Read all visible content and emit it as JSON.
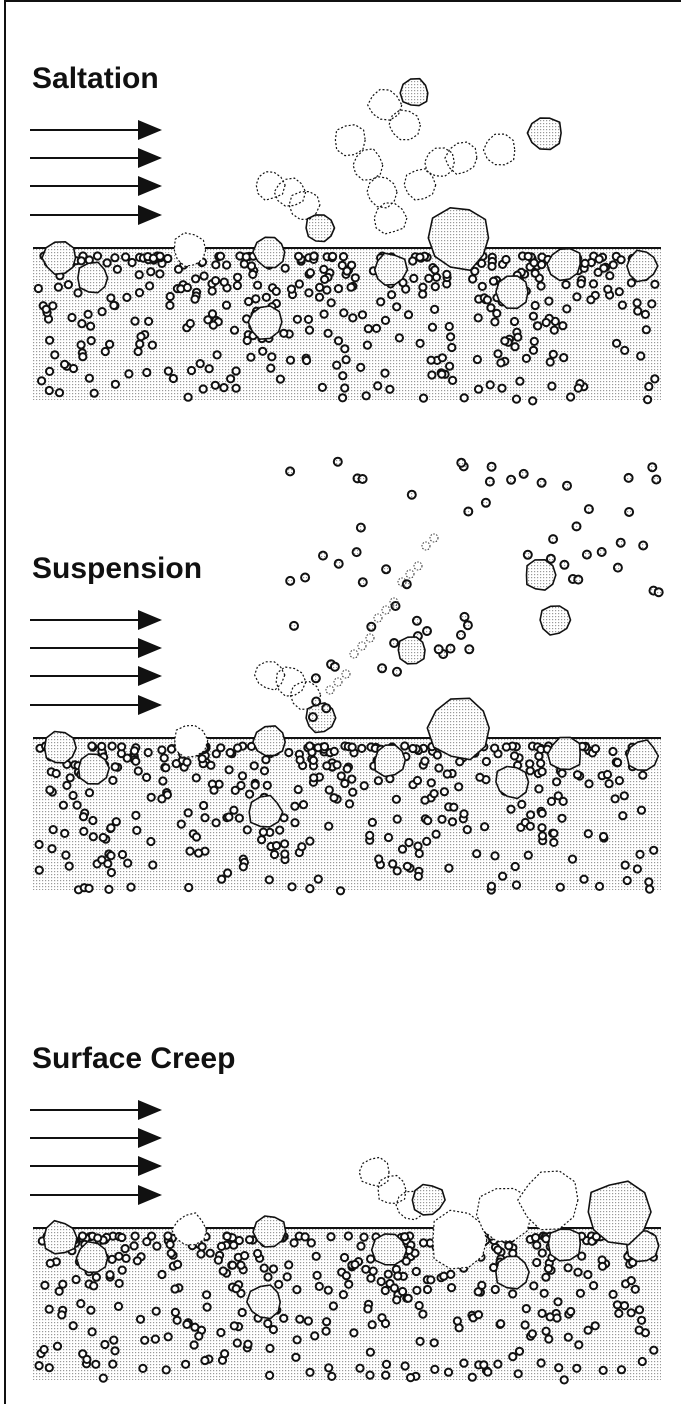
{
  "panels": [
    {
      "title": "Saltation"
    },
    {
      "title": "Suspension"
    },
    {
      "title": "Surface Creep"
    }
  ]
}
